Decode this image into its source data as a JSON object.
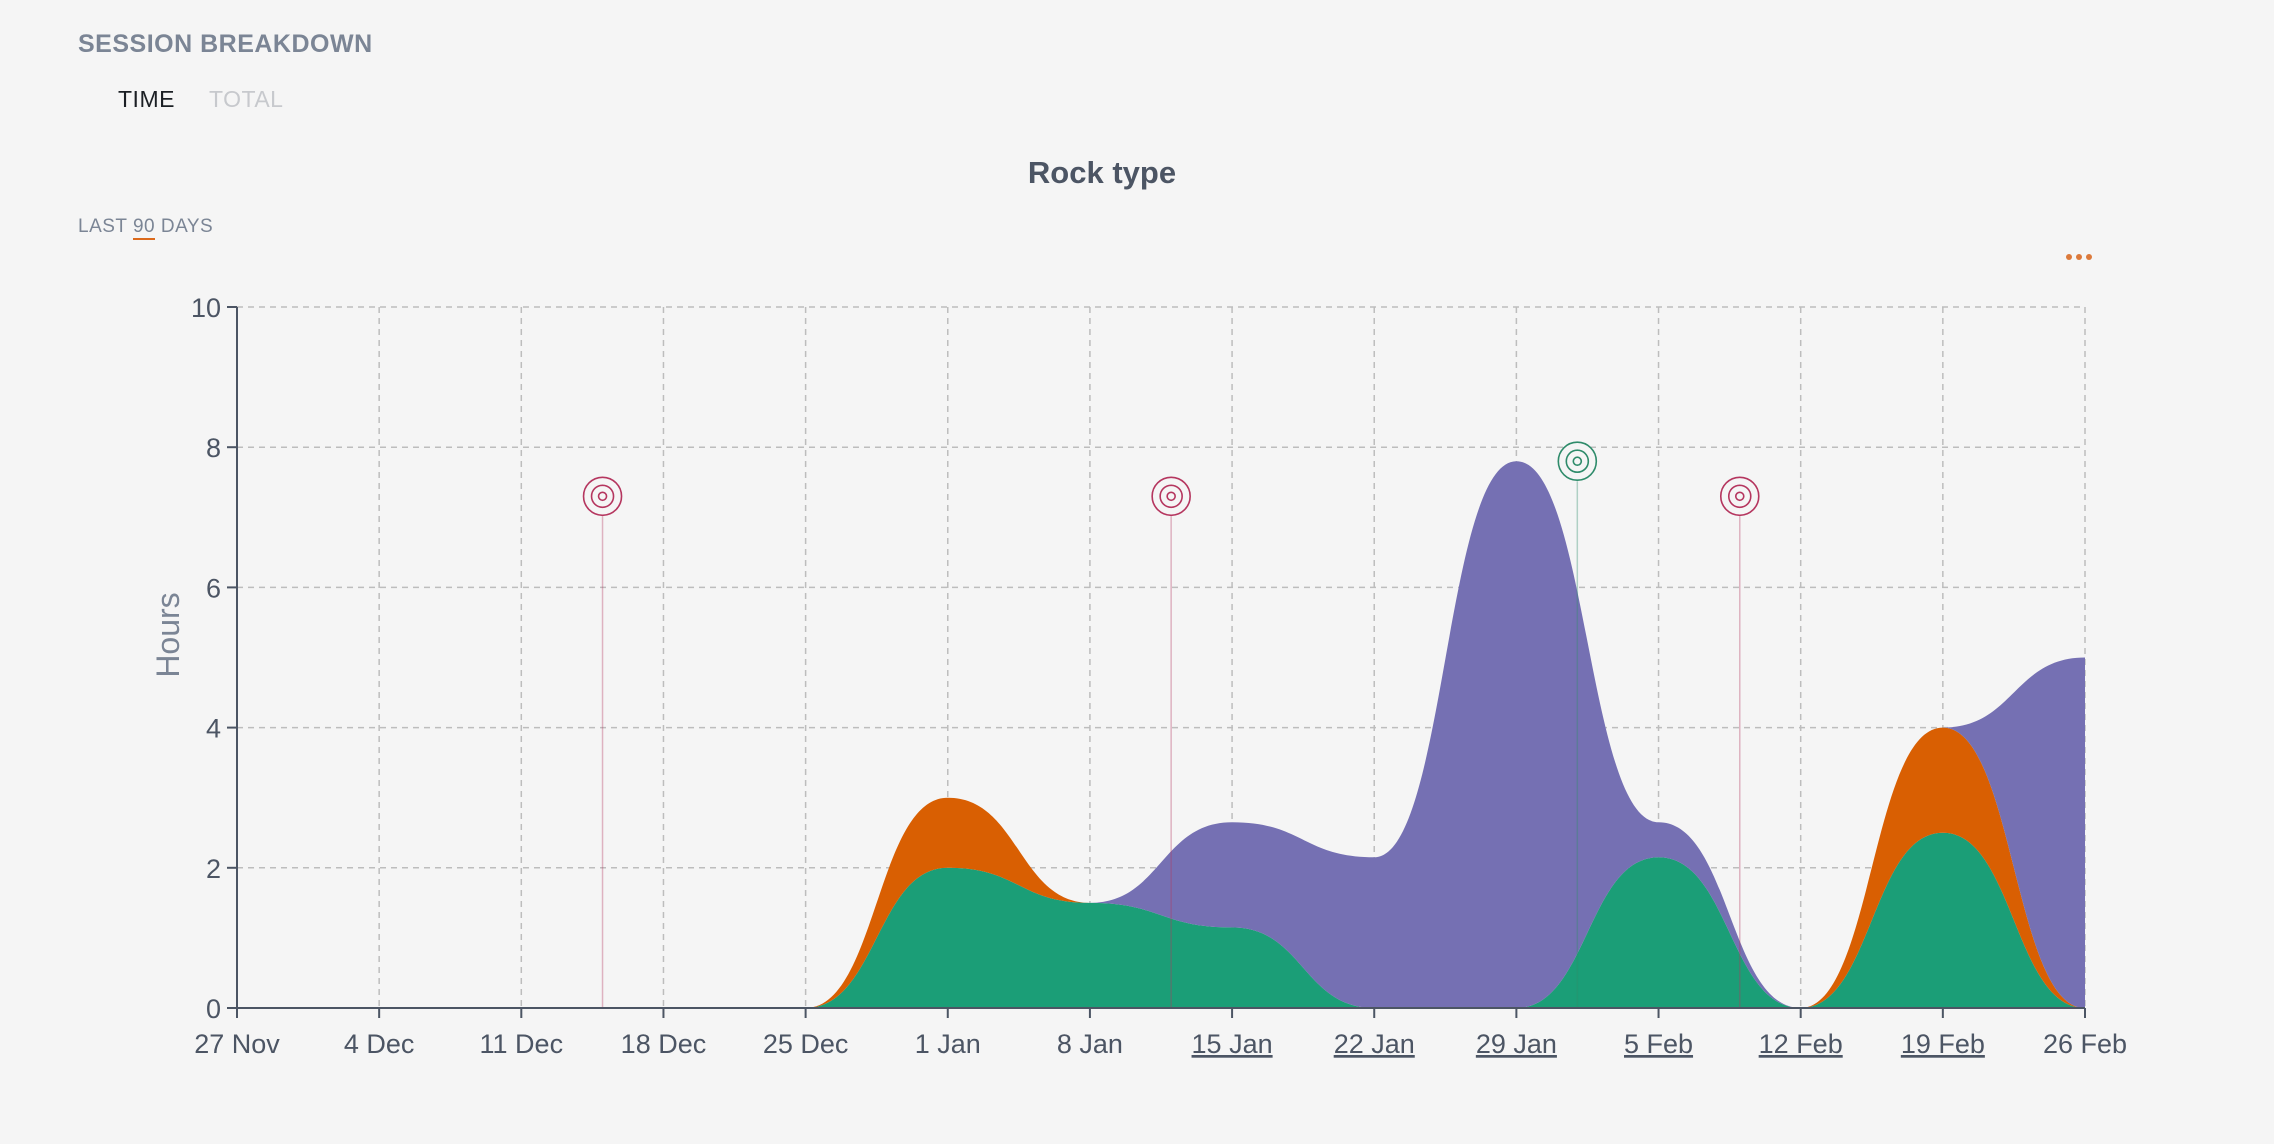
{
  "header": {
    "section_title": "SESSION BREAKDOWN",
    "tabs": [
      {
        "label": "TIME",
        "active": true
      },
      {
        "label": "TOTAL",
        "active": false
      }
    ],
    "range_prefix": "LAST",
    "range_days": "90",
    "range_suffix": "DAYS"
  },
  "colors": {
    "green": "#1b9e77",
    "orange": "#d95f02",
    "purple": "#7570b3",
    "marker_red": "#b5365f",
    "marker_green": "#2e8b6a"
  },
  "chart_data": {
    "type": "area",
    "title": "Rock type",
    "ylabel": "Hours",
    "xlabel": "",
    "ylim": [
      0,
      10
    ],
    "yticks": [
      0,
      2,
      4,
      6,
      8,
      10
    ],
    "grid": true,
    "x_start": "27 Nov",
    "x_end": "26 Feb",
    "xticks": [
      {
        "label": "27 Nov",
        "underlined": false
      },
      {
        "label": "4 Dec",
        "underlined": false
      },
      {
        "label": "11 Dec",
        "underlined": false
      },
      {
        "label": "18 Dec",
        "underlined": false
      },
      {
        "label": "25 Dec",
        "underlined": false
      },
      {
        "label": "1 Jan",
        "underlined": false
      },
      {
        "label": "8 Jan",
        "underlined": false
      },
      {
        "label": "15 Jan",
        "underlined": true
      },
      {
        "label": "22 Jan",
        "underlined": true
      },
      {
        "label": "29 Jan",
        "underlined": true
      },
      {
        "label": "5 Feb",
        "underlined": true
      },
      {
        "label": "12 Feb",
        "underlined": true
      },
      {
        "label": "19 Feb",
        "underlined": true
      },
      {
        "label": "26 Feb",
        "underlined": false
      }
    ],
    "x": [
      "27 Nov",
      "4 Dec",
      "11 Dec",
      "18 Dec",
      "25 Dec",
      "1 Jan",
      "8 Jan",
      "15 Jan",
      "22 Jan",
      "29 Jan",
      "5 Feb",
      "12 Feb",
      "19 Feb",
      "26 Feb"
    ],
    "series": [
      {
        "color": "green",
        "values": [
          0,
          0,
          0,
          0,
          0,
          2.0,
          1.5,
          1.15,
          0,
          0,
          2.15,
          0,
          2.5,
          0
        ]
      },
      {
        "color": "orange",
        "values": [
          0,
          0,
          0,
          0,
          0,
          1.0,
          0,
          0,
          0,
          0,
          0,
          0,
          1.5,
          0
        ]
      },
      {
        "color": "purple",
        "values": [
          0,
          0,
          0,
          0,
          0,
          0,
          0,
          1.5,
          2.15,
          7.8,
          0.5,
          0,
          0,
          5.0
        ]
      }
    ],
    "markers": [
      {
        "x": "15 Dec",
        "y": 7.3,
        "color": "marker_red"
      },
      {
        "x": "12 Jan",
        "y": 7.3,
        "color": "marker_red"
      },
      {
        "x": "1 Feb",
        "y": 7.8,
        "color": "marker_green"
      },
      {
        "x": "9 Feb",
        "y": 7.3,
        "color": "marker_red"
      }
    ]
  }
}
